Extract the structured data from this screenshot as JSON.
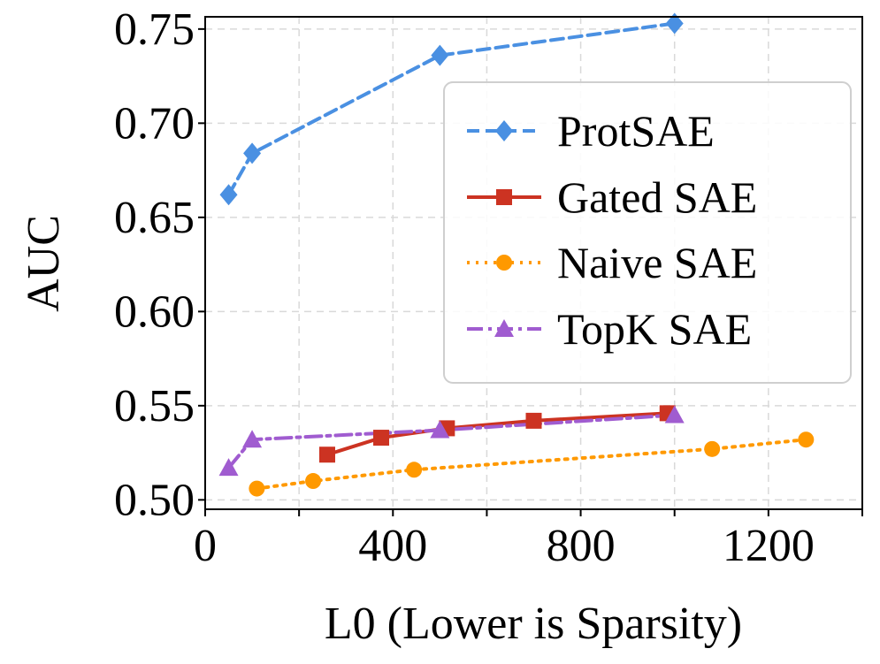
{
  "chart_data": {
    "type": "line",
    "title": "",
    "xlabel": "L0 (Lower is Sparsity)",
    "ylabel": "AUC",
    "xlim": [
      0,
      1400
    ],
    "ylim": [
      0.495,
      0.7565
    ],
    "xticks": [
      0,
      400,
      800,
      1200
    ],
    "xtick_labels": [
      "0",
      "400",
      "800",
      "1200"
    ],
    "yticks": [
      0.5,
      0.55,
      0.6,
      0.65,
      0.7,
      0.75
    ],
    "ytick_labels": [
      "0.50",
      "0.55",
      "0.60",
      "0.65",
      "0.70",
      "0.75"
    ],
    "grid": true,
    "legend_position": "upper-right",
    "series": [
      {
        "name": "ProtSAE",
        "color": "#4a90e2",
        "marker": "diamond",
        "linestyle": "dashed",
        "x": [
          50,
          100,
          500,
          1000
        ],
        "y": [
          0.662,
          0.684,
          0.736,
          0.753
        ]
      },
      {
        "name": "Gated SAE",
        "color": "#cc3322",
        "marker": "square",
        "linestyle": "solid",
        "x": [
          260,
          375,
          515,
          700,
          985
        ],
        "y": [
          0.524,
          0.533,
          0.538,
          0.542,
          0.546
        ]
      },
      {
        "name": "Naive SAE",
        "color": "#ff9900",
        "marker": "circle",
        "linestyle": "dotted",
        "x": [
          110,
          230,
          445,
          1080,
          1280
        ],
        "y": [
          0.506,
          0.51,
          0.516,
          0.527,
          0.532
        ]
      },
      {
        "name": "TopK SAE",
        "color": "#a05cd0",
        "marker": "triangle",
        "linestyle": "dashdot",
        "x": [
          50,
          100,
          500,
          1000
        ],
        "y": [
          0.517,
          0.532,
          0.537,
          0.545
        ]
      }
    ]
  }
}
